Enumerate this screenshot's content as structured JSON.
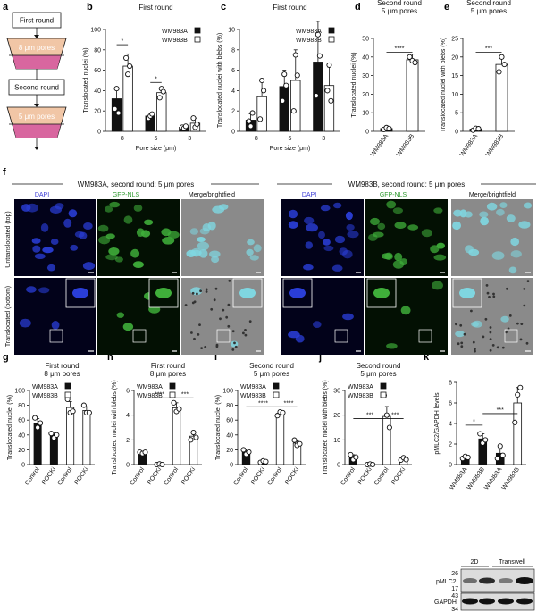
{
  "panel_labels": [
    "a",
    "b",
    "c",
    "d",
    "e",
    "f",
    "g",
    "h",
    "i",
    "j",
    "k"
  ],
  "schematic": {
    "first_round": "First round",
    "pores8": "8 μm pores",
    "second_round": "Second round",
    "pores5": "5 μm pores"
  },
  "microscopy": {
    "left_header": "WM983A, second round: 5 μm pores",
    "right_header": "WM983B, second round: 5 μm pores",
    "col_dapi": "DAPI",
    "col_gfp": "GFP-NLS",
    "col_merge": "Merge/brightfield",
    "row_top": "Untranslocated (top)",
    "row_bottom": "Translocated (bottom)"
  },
  "legend": {
    "a": "WM983A",
    "b": "WM983B"
  },
  "western": {
    "group_2d": "2D",
    "group_transwell": "Transwell",
    "band_pmlc2": "pMLC2",
    "band_gapdh": "GAPDH",
    "mw": [
      "26",
      "17",
      "43",
      "34"
    ]
  },
  "chart_data": [
    {
      "panel": "b",
      "type": "bar",
      "title": "First round",
      "xlabel": "Pore size (μm)",
      "ylabel": "Translocated nuclei (%)",
      "ylim": [
        0,
        100
      ],
      "yticks": [
        "0",
        "20",
        "40",
        "60",
        "80",
        "100"
      ],
      "categories": [
        "8",
        "5",
        "3"
      ],
      "series": [
        {
          "name": "WM983A",
          "values": [
            32,
            15,
            4
          ],
          "err": [
            10,
            3,
            1
          ]
        },
        {
          "name": "WM983B",
          "values": [
            64,
            38,
            8
          ],
          "err": [
            12,
            5,
            5
          ]
        }
      ],
      "significance": [
        "*",
        "*"
      ]
    },
    {
      "panel": "c",
      "type": "bar",
      "title": "First round",
      "xlabel": "Pore size (μm)",
      "ylabel": "Translocated nuclei with blebs (%)",
      "ylim": [
        0,
        10
      ],
      "yticks": [
        "0",
        "2",
        "4",
        "6",
        "8",
        "10"
      ],
      "categories": [
        "8",
        "5",
        "3"
      ],
      "series": [
        {
          "name": "WM983A",
          "values": [
            1.1,
            4.4,
            6.8
          ],
          "err": [
            0.6,
            1.6,
            4.0
          ]
        },
        {
          "name": "WM983B",
          "values": [
            3.4,
            5.0,
            4.5
          ],
          "err": [
            1.6,
            3.0,
            1.8
          ]
        }
      ]
    },
    {
      "panel": "d",
      "type": "bar",
      "title": "Second round\n5 μm pores",
      "ylabel": "Translocated nuclei (%)",
      "ylim": [
        0,
        50
      ],
      "yticks": [
        "0",
        "10",
        "20",
        "30",
        "40",
        "50"
      ],
      "categories": [
        "WM983A",
        "WM983B"
      ],
      "values": [
        1.5,
        38.5
      ],
      "err": [
        0.5,
        3
      ],
      "significance": [
        "****"
      ]
    },
    {
      "panel": "e",
      "type": "bar",
      "title": "Second round\n5 μm pores",
      "ylabel": "Translocated nuclei with blebs (%)",
      "ylim": [
        0,
        25
      ],
      "yticks": [
        "0",
        "5",
        "10",
        "15",
        "20",
        "25"
      ],
      "categories": [
        "WM983A",
        "WM983B"
      ],
      "values": [
        0.6,
        18
      ],
      "err": [
        0.3,
        2.5
      ],
      "significance": [
        "***"
      ]
    },
    {
      "panel": "g",
      "type": "bar",
      "title": "First round\n8 μm pores",
      "ylabel": "Translocated nuclei (%)",
      "ylim": [
        0,
        100
      ],
      "yticks": [
        "0",
        "20",
        "40",
        "60",
        "80",
        "100"
      ],
      "categories": [
        "Control",
        "ROCKi",
        "Control",
        "ROCKi"
      ],
      "values": [
        56,
        39,
        77,
        73
      ],
      "err": [
        6,
        5,
        8,
        5
      ]
    },
    {
      "panel": "h",
      "type": "bar",
      "title": "First round\n8 μm pores",
      "ylabel": "Translocated nuclei with blebs (%)",
      "ylim": [
        0,
        6
      ],
      "yticks": [
        "0",
        "2",
        "4",
        "6"
      ],
      "categories": [
        "Control",
        "ROCKi",
        "Control",
        "ROCKi"
      ],
      "values": [
        0.95,
        0.02,
        4.6,
        2.3
      ],
      "err": [
        0.1,
        0.02,
        0.4,
        0.4
      ],
      "significance": [
        "****",
        "***"
      ]
    },
    {
      "panel": "i",
      "type": "bar",
      "title": "Second round\n5 μm pores",
      "ylabel": "Translocated nuclei (%)",
      "ylim": [
        0,
        100
      ],
      "yticks": [
        "0",
        "20",
        "40",
        "60",
        "80",
        "100"
      ],
      "categories": [
        "Control",
        "ROCKi",
        "Control",
        "ROCKi"
      ],
      "values": [
        17,
        4,
        69,
        29
      ],
      "err": [
        4,
        1,
        3,
        3
      ],
      "significance": [
        "****",
        "****"
      ]
    },
    {
      "panel": "j",
      "type": "bar",
      "title": "Second round\n5 μm pores",
      "ylabel": "Translocated nuclei with blebs (%)",
      "ylim": [
        0,
        30
      ],
      "yticks": [
        "0",
        "10",
        "20",
        "30"
      ],
      "categories": [
        "Control",
        "ROCKi",
        "Control",
        "ROCKi"
      ],
      "values": [
        3,
        0.1,
        19.5,
        2.2
      ],
      "err": [
        1,
        0.1,
        4,
        0.5
      ],
      "significance": [
        "***",
        "***"
      ]
    },
    {
      "panel": "k",
      "type": "bar",
      "ylabel": "pMLC2/GAPDH levels",
      "ylim": [
        0,
        8
      ],
      "yticks": [
        "0",
        "2",
        "4",
        "6",
        "8"
      ],
      "categories": [
        "WM983A",
        "WM983B",
        "WM983A",
        "WM983B"
      ],
      "values": [
        0.7,
        2.5,
        1.1,
        6.0
      ],
      "err": [
        0.1,
        0.5,
        0.4,
        1.5
      ],
      "significance": [
        "*",
        "***"
      ]
    }
  ]
}
